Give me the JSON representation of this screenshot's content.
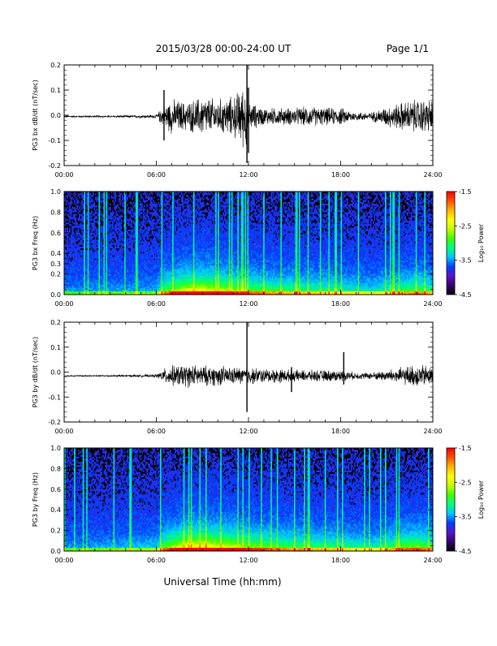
{
  "header": {
    "title": "2015/03/28  00:00-24:00 UT",
    "page": "Page 1/1"
  },
  "footer": {
    "xlabel": "Universal Time (hh:mm)"
  },
  "colorbar": {
    "label": "Log₁₀ Power",
    "tick_labels": [
      "-1.5",
      "-2.5",
      "-3.5",
      "-4.5"
    ],
    "range": [
      -4.5,
      -1.5
    ],
    "colors": [
      "#000000",
      "#3a0070",
      "#5a14c8",
      "#0040ff",
      "#00c8ff",
      "#00ff80",
      "#40ff00",
      "#c8ff00",
      "#ffff00",
      "#ffb400",
      "#ff5000",
      "#ff0000"
    ]
  },
  "chart_data": [
    {
      "type": "line",
      "ylabel": "PG3 bx dB/dt (nT/sec)",
      "xlim": [
        0,
        24
      ],
      "ylim": [
        -0.2,
        0.2
      ],
      "x_tick_labels": [
        "00:00",
        "06:00",
        "12:00",
        "18:00",
        "24:00"
      ],
      "y_tick_labels": [
        "0.2",
        "0.1",
        "0.0",
        "-0.1",
        "-0.2"
      ],
      "y_ticks": [
        0.2,
        0.1,
        0.0,
        -0.1,
        -0.2
      ],
      "series": [
        {
          "x": [
            0,
            3,
            6,
            6.5,
            7,
            8,
            9,
            10,
            11,
            11.9,
            12,
            13,
            14,
            15,
            16,
            17,
            18,
            19,
            20,
            21,
            22,
            23,
            24
          ],
          "amplitude": [
            0.003,
            0.003,
            0.006,
            0.04,
            0.06,
            0.05,
            0.07,
            0.06,
            0.07,
            0.12,
            0.05,
            0.03,
            0.03,
            0.03,
            0.035,
            0.03,
            0.03,
            0.015,
            0.015,
            0.035,
            0.05,
            0.06,
            0.06
          ],
          "offset": -0.005
        }
      ],
      "spikes": [
        {
          "x": 11.9,
          "min": -0.19,
          "max": 0.2
        },
        {
          "x": 12.0,
          "min": -0.15,
          "max": 0.11
        },
        {
          "x": 6.5,
          "min": -0.1,
          "max": 0.1
        }
      ]
    },
    {
      "type": "heatmap",
      "ylabel": "PG3 bx Freq (Hz)",
      "xlim": [
        0,
        24
      ],
      "ylim": [
        0,
        1
      ],
      "x_tick_labels": [
        "00:00",
        "06:00",
        "12:00",
        "18:00",
        "24:00"
      ],
      "y_tick_labels": [
        "1.0",
        "0.8",
        "0.6",
        "0.4",
        "0.3",
        "0.2",
        "0.0"
      ],
      "y_ticks": [
        1.0,
        0.8,
        0.6,
        0.4,
        0.3,
        0.2,
        0.0
      ],
      "activity_hours": [
        0,
        6,
        6.5,
        8,
        9,
        10,
        11,
        12,
        14,
        16,
        18,
        20,
        21,
        22,
        23,
        24
      ],
      "activity_level": [
        0.15,
        0.2,
        0.55,
        0.85,
        0.9,
        0.8,
        0.7,
        0.6,
        0.5,
        0.45,
        0.4,
        0.3,
        0.4,
        0.5,
        0.55,
        0.45
      ]
    },
    {
      "type": "line",
      "ylabel": "PG3 by dB/dt (nT/sec)",
      "xlim": [
        0,
        24
      ],
      "ylim": [
        -0.2,
        0.2
      ],
      "x_tick_labels": [
        "00:00",
        "06:00",
        "12:00",
        "18:00",
        "24:00"
      ],
      "y_tick_labels": [
        "0.2",
        "0.1",
        "0.0",
        "-0.1",
        "-0.2"
      ],
      "y_ticks": [
        0.2,
        0.1,
        0.0,
        -0.1,
        -0.2
      ],
      "series": [
        {
          "x": [
            0,
            3,
            6,
            6.5,
            7,
            8,
            9,
            10,
            11,
            12,
            13,
            14,
            15,
            16,
            17,
            18,
            19,
            20,
            21,
            22,
            23,
            24
          ],
          "amplitude": [
            0.002,
            0.003,
            0.005,
            0.025,
            0.035,
            0.04,
            0.035,
            0.035,
            0.03,
            0.03,
            0.025,
            0.025,
            0.02,
            0.02,
            0.02,
            0.02,
            0.012,
            0.012,
            0.02,
            0.03,
            0.04,
            0.035
          ],
          "offset": -0.015
        }
      ],
      "spikes": [
        {
          "x": 11.9,
          "min": -0.16,
          "max": 0.2
        },
        {
          "x": 18.2,
          "min": -0.05,
          "max": 0.08
        },
        {
          "x": 14.8,
          "min": -0.08,
          "max": 0.02
        }
      ]
    },
    {
      "type": "heatmap",
      "ylabel": "PG3 by Freq (Hz)",
      "xlim": [
        0,
        24
      ],
      "ylim": [
        0,
        1
      ],
      "x_tick_labels": [
        "00:00",
        "06:00",
        "12:00",
        "18:00",
        "24:00"
      ],
      "y_tick_labels": [
        "1.0",
        "0.8",
        "0.6",
        "0.4",
        "0.2",
        "0.0"
      ],
      "y_ticks": [
        1.0,
        0.8,
        0.6,
        0.4,
        0.2,
        0.0
      ],
      "activity_hours": [
        0,
        6,
        6.5,
        8,
        9,
        10,
        11,
        12,
        14,
        16,
        18,
        20,
        21,
        22,
        23,
        24
      ],
      "activity_level": [
        0.15,
        0.25,
        0.6,
        0.95,
        1.0,
        0.9,
        0.8,
        0.7,
        0.55,
        0.5,
        0.45,
        0.35,
        0.45,
        0.6,
        0.65,
        0.5
      ]
    }
  ]
}
